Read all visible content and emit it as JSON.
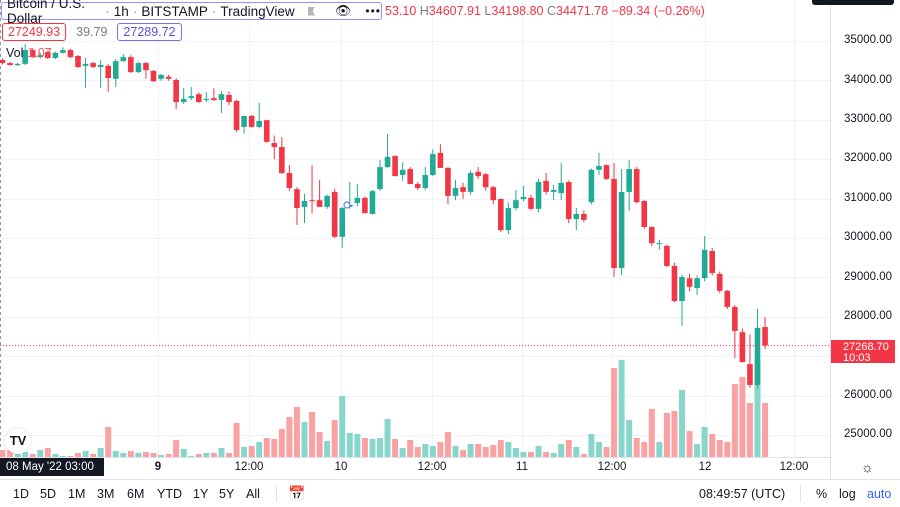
{
  "legend": {
    "symbol": "Bitcoin / U.S. Dollar",
    "interval": "1h",
    "exchange": "BITSTAMP",
    "source": "TradingView",
    "separator": "·",
    "ohlc_open_partial": "53.10",
    "high_key": "H",
    "high": "34607.91",
    "low_key": "L",
    "low": "34198.80",
    "close_key": "C",
    "close": "34471.78",
    "change": "−89.34 (−0.26%)",
    "bid": "27249.93",
    "spread": "39.79",
    "ask": "27289.72",
    "vol_label": "Vol",
    "vol_value": "1.07",
    "icons": [
      "flag-icon",
      "eye-icon",
      "more-icon"
    ]
  },
  "price_axis": {
    "labels": [
      "35000.00",
      "34000.00",
      "33000.00",
      "32000.00",
      "31000.00",
      "30000.00",
      "29000.00",
      "28000.00",
      "26000.00",
      "25000.00"
    ],
    "last_price": "27268.70",
    "countdown": "10:03"
  },
  "time_axis": {
    "labels": [
      "9",
      "12:00",
      "10",
      "12:00",
      "11",
      "12:00",
      "12",
      "12:00"
    ],
    "crosshair": "08 May '22   03:00"
  },
  "toolbar": {
    "ranges": [
      "1D",
      "5D",
      "1M",
      "3M",
      "6M",
      "YTD",
      "1Y",
      "5Y",
      "All"
    ],
    "clock": "08:49:57 (UTC)",
    "percent": "%",
    "log": "log",
    "auto": "auto"
  },
  "colors": {
    "up": "#22ab94",
    "down": "#f23645",
    "up_vol": "#86d6cb",
    "down_vol": "#faa1a4",
    "accent": "#2962ff"
  },
  "chart_data": {
    "type": "candlestick",
    "title": "Bitcoin / U.S. Dollar · 1h · BITSTAMP",
    "interval": "1h",
    "first_bar": "08 May '22 03:00",
    "ylim": [
      24500,
      35300
    ],
    "grid": true,
    "last_price": 27268.7,
    "ohlc_fields": [
      "open",
      "high",
      "low",
      "close"
    ],
    "candles": [
      [
        34520,
        34560,
        34400,
        34440
      ],
      [
        34440,
        34470,
        34370,
        34390
      ],
      [
        34390,
        34440,
        34360,
        34420
      ],
      [
        34420,
        34920,
        34390,
        34770
      ],
      [
        34770,
        34820,
        34570,
        34590
      ],
      [
        34590,
        34700,
        34560,
        34640
      ],
      [
        34720,
        34760,
        34540,
        34570
      ],
      [
        34570,
        34730,
        34540,
        34700
      ],
      [
        34700,
        34840,
        34680,
        34770
      ],
      [
        34770,
        34800,
        34560,
        34590
      ],
      [
        34620,
        34640,
        34310,
        34340
      ],
      [
        34370,
        34570,
        33810,
        34420
      ],
      [
        34440,
        34470,
        34310,
        34340
      ],
      [
        34340,
        34520,
        33810,
        34390
      ],
      [
        34370,
        34420,
        33710,
        34060
      ],
      [
        34040,
        34540,
        33830,
        34490
      ],
      [
        34490,
        34670,
        34470,
        34590
      ],
      [
        34590,
        34640,
        34190,
        34210
      ],
      [
        34210,
        34470,
        34190,
        34440
      ],
      [
        34440,
        34470,
        34040,
        34260
      ],
      [
        34240,
        34260,
        33960,
        33980
      ],
      [
        34040,
        34160,
        33990,
        34140
      ],
      [
        34090,
        34140,
        33990,
        34040
      ],
      [
        34010,
        34060,
        33270,
        33450
      ],
      [
        33450,
        33810,
        33400,
        33530
      ],
      [
        33550,
        33830,
        33500,
        33600
      ],
      [
        33650,
        33700,
        33430,
        33450
      ],
      [
        33500,
        33700,
        33450,
        33530
      ],
      [
        33550,
        33800,
        33480,
        33500
      ],
      [
        33500,
        33730,
        33170,
        33650
      ],
      [
        33630,
        33720,
        33370,
        33450
      ],
      [
        33480,
        33500,
        32690,
        32740
      ],
      [
        32820,
        33100,
        32650,
        33100
      ],
      [
        33100,
        33120,
        32800,
        32820
      ],
      [
        32820,
        33430,
        32780,
        32970
      ],
      [
        32990,
        33000,
        32420,
        32440
      ],
      [
        32410,
        32600,
        32000,
        32310
      ],
      [
        32310,
        32560,
        31620,
        31650
      ],
      [
        31650,
        31850,
        31200,
        31270
      ],
      [
        31240,
        31290,
        30330,
        30760
      ],
      [
        30790,
        31120,
        30380,
        30940
      ],
      [
        30960,
        31850,
        30630,
        30940
      ],
      [
        30960,
        31470,
        30790,
        30790
      ],
      [
        30790,
        31100,
        30740,
        31070
      ],
      [
        31170,
        31250,
        30000,
        30030
      ],
      [
        30030,
        30790,
        29750,
        30760
      ],
      [
        30790,
        31420,
        30740,
        30840
      ],
      [
        30890,
        31370,
        30800,
        31020
      ],
      [
        31020,
        31050,
        30630,
        30630
      ],
      [
        30610,
        31220,
        30600,
        31190
      ],
      [
        31240,
        31980,
        31200,
        31800
      ],
      [
        31800,
        32640,
        31780,
        32060
      ],
      [
        32080,
        32100,
        31570,
        31570
      ],
      [
        31600,
        31920,
        31450,
        31730
      ],
      [
        31750,
        31800,
        31370,
        31370
      ],
      [
        31370,
        31420,
        31220,
        31270
      ],
      [
        31270,
        31800,
        31220,
        31600
      ],
      [
        31600,
        32250,
        31570,
        32130
      ],
      [
        32160,
        32380,
        31780,
        31780
      ],
      [
        31780,
        31800,
        30860,
        31070
      ],
      [
        31070,
        31470,
        30960,
        31270
      ],
      [
        31290,
        31400,
        30990,
        31170
      ],
      [
        31170,
        31720,
        31100,
        31650
      ],
      [
        31680,
        31800,
        31500,
        31570
      ],
      [
        31620,
        31650,
        31200,
        31290
      ],
      [
        31290,
        31320,
        30860,
        30960
      ],
      [
        30990,
        31000,
        30150,
        30200
      ],
      [
        30200,
        30900,
        30100,
        30760
      ],
      [
        30760,
        31220,
        30700,
        30960
      ],
      [
        30990,
        31320,
        30930,
        31040
      ],
      [
        31020,
        31100,
        30700,
        30740
      ],
      [
        30740,
        31500,
        30650,
        31420
      ],
      [
        31450,
        31650,
        31100,
        31170
      ],
      [
        31170,
        31350,
        30960,
        31220
      ],
      [
        31140,
        31900,
        30960,
        31400
      ],
      [
        31420,
        31460,
        30380,
        30480
      ],
      [
        30480,
        30760,
        30200,
        30610
      ],
      [
        30610,
        30700,
        30400,
        30460
      ],
      [
        30910,
        31760,
        30850,
        31730
      ],
      [
        31730,
        32160,
        31600,
        31830
      ],
      [
        31850,
        31870,
        31480,
        31500
      ],
      [
        31500,
        31900,
        29010,
        29240
      ],
      [
        29240,
        31750,
        29060,
        31170
      ],
      [
        31170,
        31980,
        30690,
        31750
      ],
      [
        31750,
        31800,
        30880,
        30910
      ],
      [
        30940,
        30960,
        30230,
        30280
      ],
      [
        30280,
        30300,
        29800,
        29870
      ],
      [
        29850,
        29950,
        29700,
        29870
      ],
      [
        29800,
        29830,
        29260,
        29290
      ],
      [
        29290,
        29370,
        28370,
        28400
      ],
      [
        28400,
        29070,
        27770,
        29010
      ],
      [
        28980,
        29090,
        28650,
        28760
      ],
      [
        28730,
        29050,
        28550,
        28980
      ],
      [
        28980,
        30050,
        28900,
        29700
      ],
      [
        29670,
        29750,
        29050,
        29110
      ],
      [
        29090,
        29150,
        28600,
        28660
      ],
      [
        28660,
        28680,
        28200,
        28250
      ],
      [
        28250,
        28300,
        26950,
        27640
      ],
      [
        27610,
        27700,
        26840,
        26850
      ],
      [
        26800,
        27550,
        26200,
        26270
      ],
      [
        26270,
        28200,
        26200,
        27720
      ],
      [
        27740,
        28000,
        27180,
        27270
      ]
    ],
    "volume_relative": [
      7,
      7,
      4,
      5,
      3,
      7,
      9,
      3,
      1,
      1,
      4,
      6,
      3,
      9,
      30,
      6,
      4,
      6,
      4,
      5,
      4,
      2,
      3,
      17,
      8,
      1,
      3,
      4,
      4,
      9,
      4,
      34,
      10,
      11,
      15,
      19,
      18,
      28,
      40,
      50,
      35,
      45,
      25,
      16,
      37,
      61,
      24,
      23,
      19,
      18,
      19,
      38,
      18,
      9,
      17,
      10,
      13,
      11,
      15,
      25,
      11,
      7,
      13,
      13,
      10,
      12,
      17,
      15,
      9,
      5,
      5,
      11,
      5,
      4,
      13,
      17,
      10,
      3,
      23,
      15,
      10,
      89,
      97,
      37,
      19,
      15,
      48,
      15,
      44,
      46,
      67,
      26,
      13,
      30,
      23,
      17,
      15,
      73,
      80,
      54,
      97,
      54
    ]
  }
}
